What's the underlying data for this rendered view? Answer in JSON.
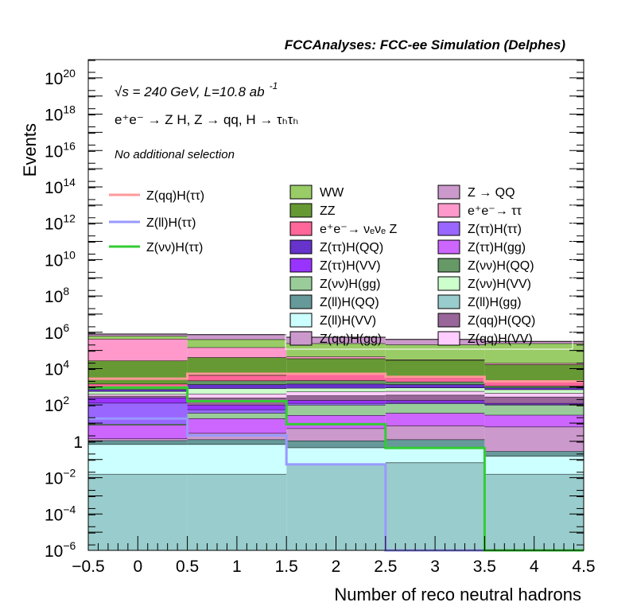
{
  "chart_data": {
    "type": "bar",
    "subtype": "stacked-histogram-log",
    "title": "FCCAnalyses: FCC-ee Simulation (Delphes)",
    "xlabel": "Number of reco neutral hadrons",
    "ylabel": "Events",
    "xlim": [
      -0.5,
      4.5
    ],
    "ylim": [
      1e-06,
      1e+21
    ],
    "yscale": "log",
    "bin_edges": [
      -0.5,
      0.5,
      1.5,
      2.5,
      3.5,
      4.5
    ],
    "x_tick_labels": [
      "−0.5",
      "0",
      "0.5",
      "1",
      "1.5",
      "2",
      "2.5",
      "3",
      "3.5",
      "4",
      "4.5"
    ],
    "x_tick_values": [
      -0.5,
      0,
      0.5,
      1,
      1.5,
      2,
      2.5,
      3,
      3.5,
      4,
      4.5
    ],
    "y_tick_labels": [
      {
        "value": 1e+20,
        "base": "10",
        "exp": "20"
      },
      {
        "value": 1e+18,
        "base": "10",
        "exp": "18"
      },
      {
        "value": 1e+16,
        "base": "10",
        "exp": "16"
      },
      {
        "value": 100000000000000.0,
        "base": "10",
        "exp": "14"
      },
      {
        "value": 1000000000000.0,
        "base": "10",
        "exp": "12"
      },
      {
        "value": 10000000000.0,
        "base": "10",
        "exp": "10"
      },
      {
        "value": 100000000.0,
        "base": "10",
        "exp": "8"
      },
      {
        "value": 1000000.0,
        "base": "10",
        "exp": "6"
      },
      {
        "value": 10000.0,
        "base": "10",
        "exp": "4"
      },
      {
        "value": 100.0,
        "base": "10",
        "exp": "2"
      },
      {
        "value": 1,
        "base": "1",
        "exp": ""
      },
      {
        "value": 0.01,
        "base": "10",
        "exp": "−2"
      },
      {
        "value": 0.0001,
        "base": "10",
        "exp": "−4"
      },
      {
        "value": 1e-06,
        "base": "10",
        "exp": "−6"
      }
    ],
    "annotations": {
      "energy_lumi": "√s = 240 GeV, L=10.8 ab",
      "lumi_exp": "-1",
      "process": "e⁺e⁻ → Z H, Z  → qq, H  →  τₕτₕ",
      "selection": "No additional selection"
    },
    "stack_bottom_to_top": [
      {
        "name": "Z(ll)H(gg)",
        "color": "#99cccc",
        "values": [
          0.016,
          0.016,
          0.054,
          0.068,
          0.016
        ]
      },
      {
        "name": "Z(ll)H(VV)",
        "color": "#ccffff",
        "values": [
          0.67,
          0.67,
          0.4,
          0.33,
          0.14
        ]
      },
      {
        "name": "Z(ll)H(QQ)",
        "color": "#669999",
        "values": [
          0.43,
          0.57,
          0.64,
          0.86,
          0.13
        ]
      },
      {
        "name": "Z(qq)H(gg)",
        "color": "#cc99cc",
        "values": [
          0.29,
          1.56,
          4.03,
          5.98,
          6.02
        ]
      },
      {
        "name": "Z(ττ)H(gg)",
        "color": "#cc66ff",
        "values": [
          6.4,
          15.4,
          22.4,
          29.1,
          21.9
        ]
      },
      {
        "name": "Z(νν)H(gg)",
        "color": "#99cc99",
        "values": [
          1.1,
          18.1,
          72.5,
          83.9,
          71.8
        ]
      },
      {
        "name": "Z(ττ)H(ττ)",
        "color": "#9966ff",
        "values": [
          120,
          19.9,
          26,
          21,
          12
        ]
      },
      {
        "name": "Z(ττ)H(VV)",
        "color": "#9933ff",
        "values": [
          122,
          43.8,
          56,
          41,
          14
        ]
      },
      {
        "name": "Z(qq)H(QQ)",
        "color": "#996699",
        "values": [
          65,
          151,
          149,
          173,
          156
        ]
      },
      {
        "name": "Z(qq)H(VV)",
        "color": "#ffccff",
        "values": [
          82,
          166,
          206,
          220,
          175
        ]
      },
      {
        "name": "Z(νν)H(VV)",
        "color": "#ccffcc",
        "values": [
          164,
          396,
          314,
          316,
          251
        ]
      },
      {
        "name": "Z(ττ)H(QQ)",
        "color": "#6633cc",
        "values": [
          146,
          536,
          594,
          458,
          183
        ]
      },
      {
        "name": "Z(νν)H(QQ)",
        "color": "#669966",
        "values": [
          269,
          839,
          794,
          556,
          231
        ]
      },
      {
        "name": "e⁺e⁻→ νₑνₑ Z",
        "color": "#ff6699",
        "values": [
          468,
          2177,
          2547,
          1257,
          783
        ]
      },
      {
        "name": "ZZ",
        "color": "#669933",
        "values": [
          26100,
          37300,
          31500,
          26350,
          15100
        ]
      },
      {
        "name": "e⁺e⁻→ ττ",
        "color": "#ff99cc",
        "values": [
          409000,
          106200,
          9400,
          2110,
          2970
        ]
      },
      {
        "name": "WW",
        "color": "#99cc66",
        "values": [
          195000,
          259500,
          199800,
          177300,
          225600
        ]
      },
      {
        "name": "Z → QQ",
        "color": "#cc99cc",
        "values": [
          163000,
          333900,
          291500,
          198500,
          70700
        ]
      }
    ],
    "signals": [
      {
        "name": "Z(qq)H(ττ)",
        "color": "#ff9999",
        "values": [
          2800,
          5200,
          5200,
          3500,
          2000
        ]
      },
      {
        "name": "Z(ll)H(ττ)",
        "color": "#9999ff",
        "values": [
          18,
          2.1,
          0.054,
          0,
          0
        ]
      },
      {
        "name": "Z(νν)H(ττ)",
        "color": "#33cc33",
        "values": [
          910,
          163,
          8.7,
          0.43,
          0
        ]
      }
    ],
    "legend_order": [
      "WW",
      "Z → QQ",
      "ZZ",
      "e⁺e⁻→ ττ",
      "e⁺e⁻→ νₑνₑ Z",
      "Z(ττ)H(ττ)",
      "Z(ττ)H(QQ)",
      "Z(ττ)H(gg)",
      "Z(ττ)H(VV)",
      "Z(νν)H(QQ)",
      "Z(νν)H(gg)",
      "Z(νν)H(VV)",
      "Z(ll)H(QQ)",
      "Z(ll)H(gg)",
      "Z(ll)H(VV)",
      "Z(qq)H(QQ)",
      "Z(qq)H(gg)",
      "Z(qq)H(VV)"
    ],
    "legend_placement": "top-right (backgrounds), top-left (signals)"
  }
}
